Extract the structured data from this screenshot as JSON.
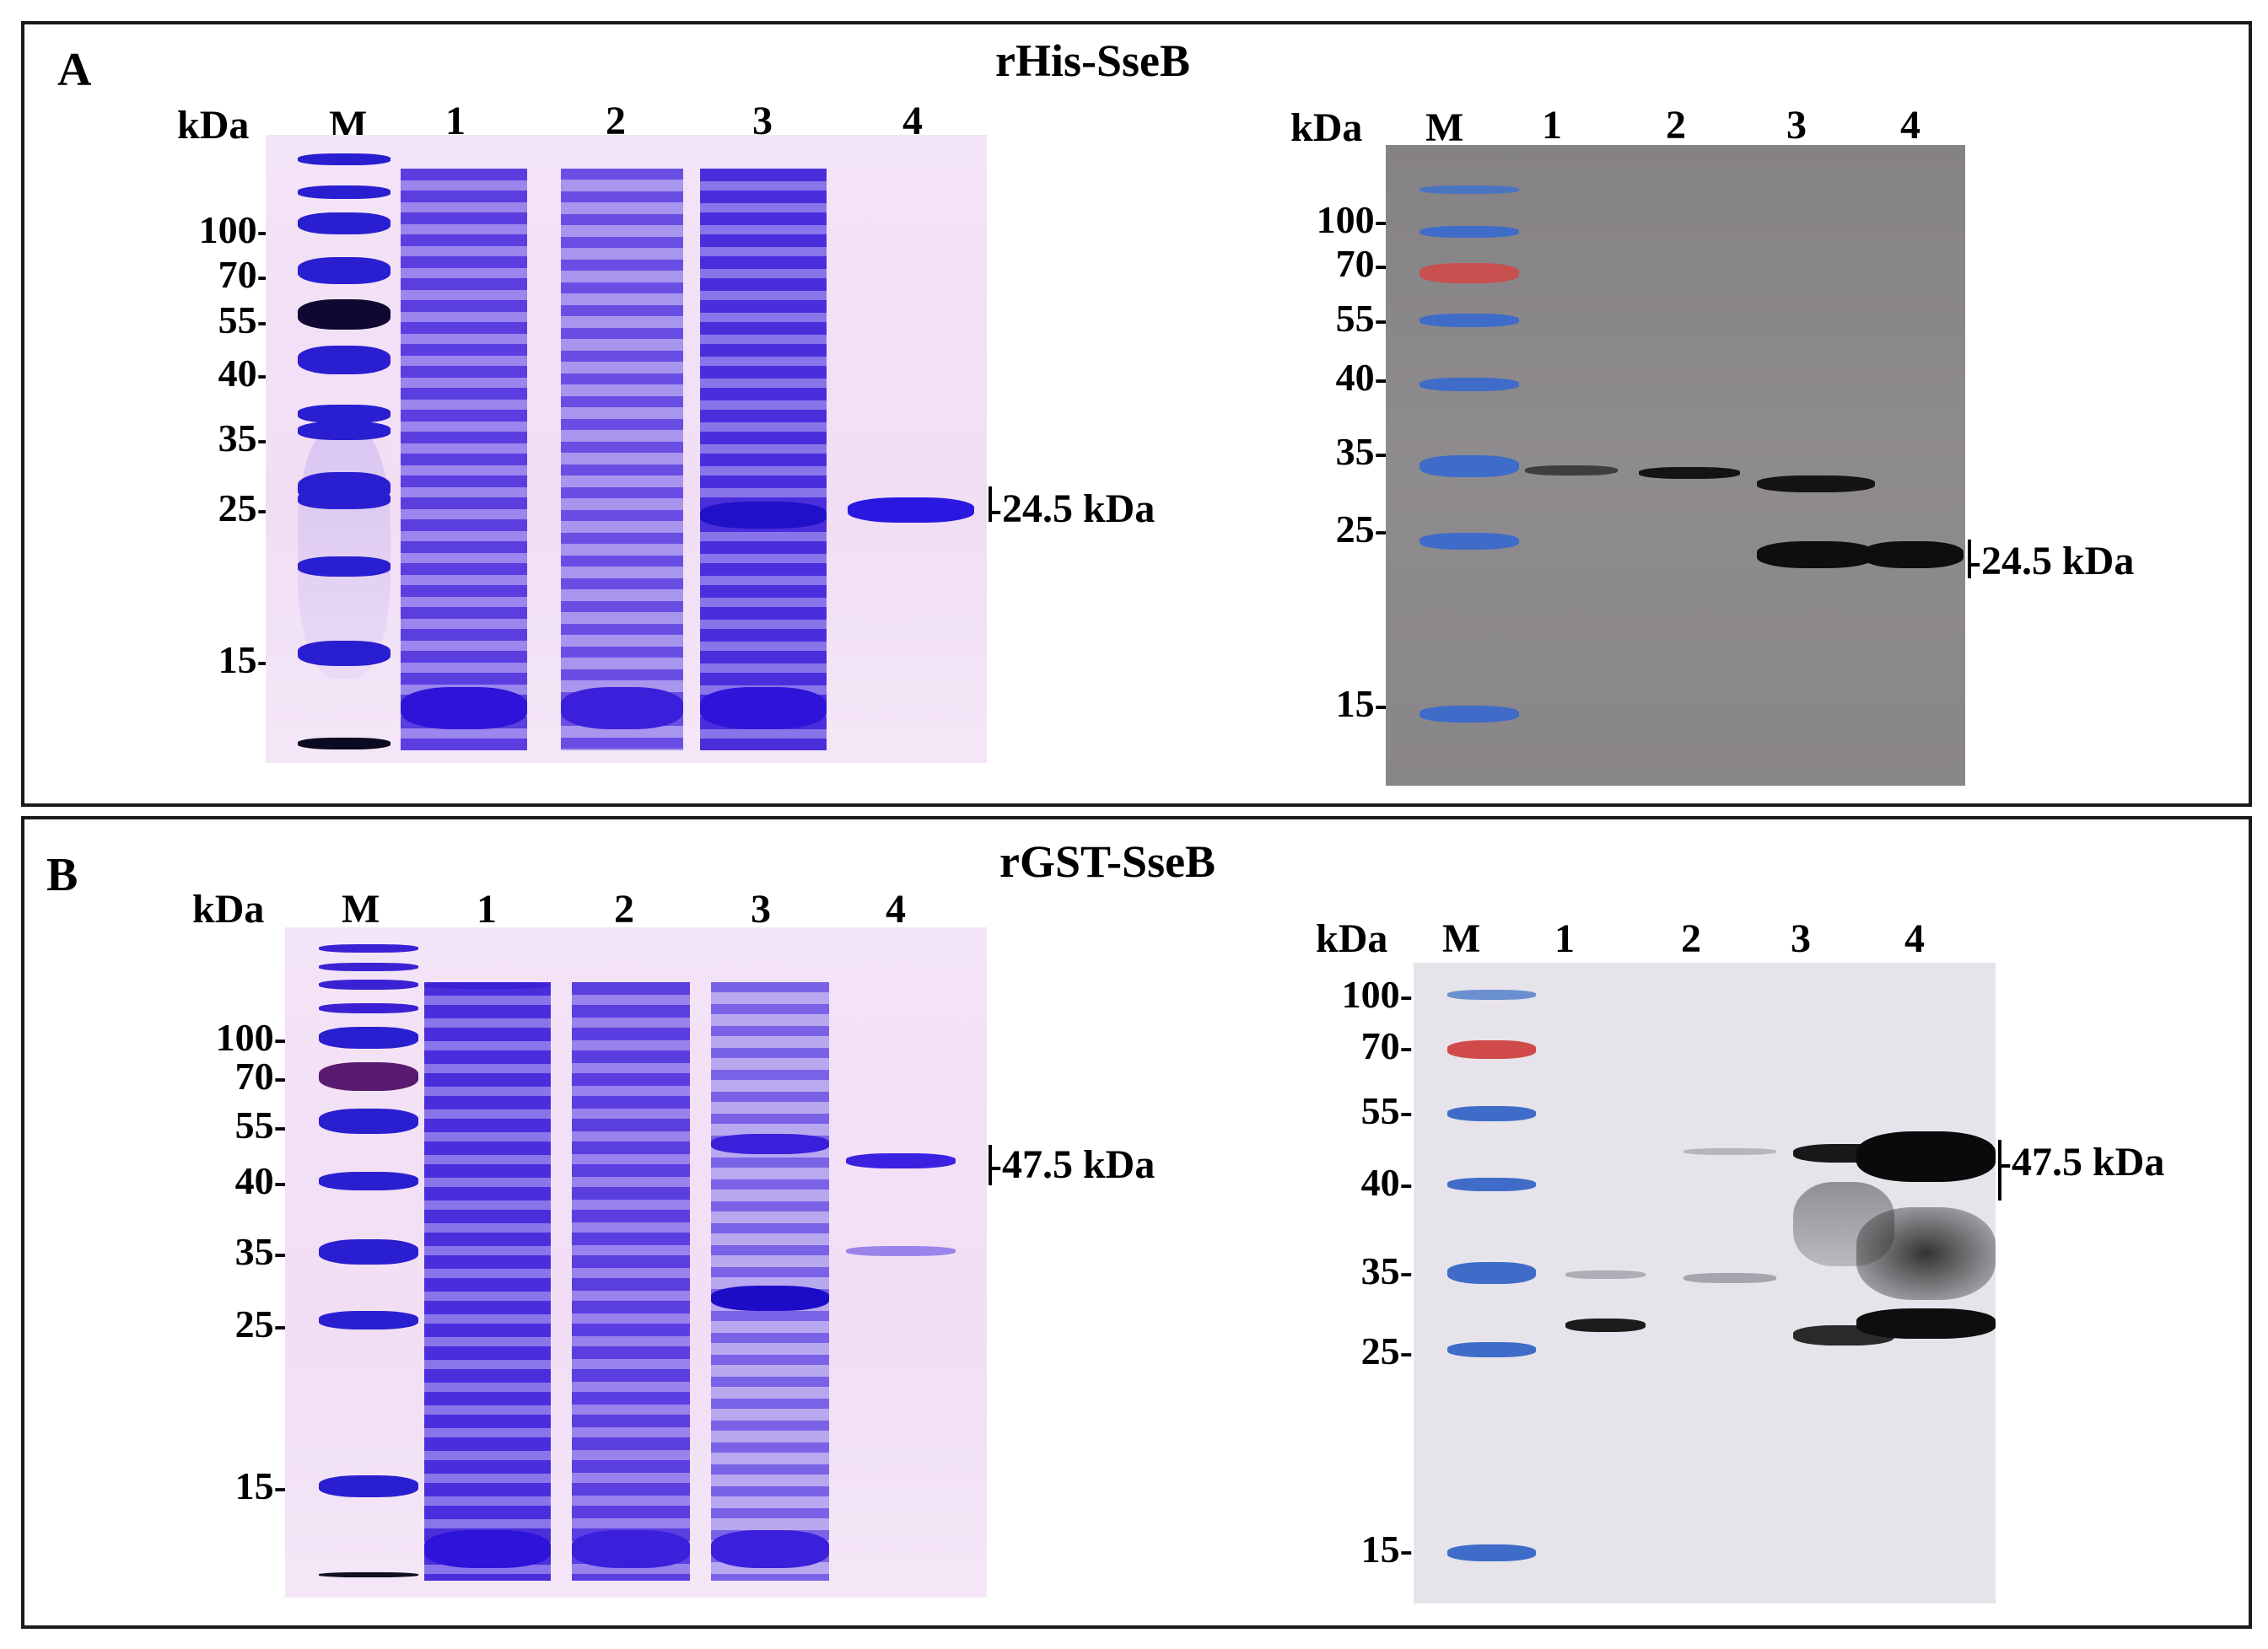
{
  "panelA": {
    "letter": "A",
    "title": "rHis-SseB",
    "left": {
      "kda": "kDa",
      "lanes": [
        "M",
        "1",
        "2",
        "3",
        "4"
      ],
      "markers": [
        "100-",
        "70-",
        "55-",
        "40-",
        "35-",
        "25-",
        "15-"
      ],
      "annotation": "-24.5 kDa"
    },
    "right": {
      "kda": "kDa",
      "lanes": [
        "M",
        "1",
        "2",
        "3",
        "4"
      ],
      "markers": [
        "100-",
        "70-",
        "55-",
        "40-",
        "35-",
        "25-",
        "15-"
      ],
      "annotation": "-24.5 kDa"
    }
  },
  "panelB": {
    "letter": "B",
    "title": "rGST-SseB",
    "left": {
      "kda": "kDa",
      "lanes": [
        "M",
        "1",
        "2",
        "3",
        "4"
      ],
      "markers": [
        "100-",
        "70-",
        "55-",
        "40-",
        "35-",
        "25-",
        "15-"
      ],
      "annotation": "-47.5 kDa"
    },
    "right": {
      "kda": "kDa",
      "lanes": [
        "M",
        "1",
        "2",
        "3",
        "4"
      ],
      "markers": [
        "100-",
        "70-",
        "55-",
        "40-",
        "35-",
        "25-",
        "15-"
      ],
      "annotation": "-47.5 kDa"
    }
  },
  "colors": {
    "coomassie": "#3a1fd6",
    "coomassie_dark": "#2a0fb8",
    "ladder_blue": "#3b6fd0",
    "ladder_red": "#d04a4a",
    "blot_band": "#141414"
  }
}
